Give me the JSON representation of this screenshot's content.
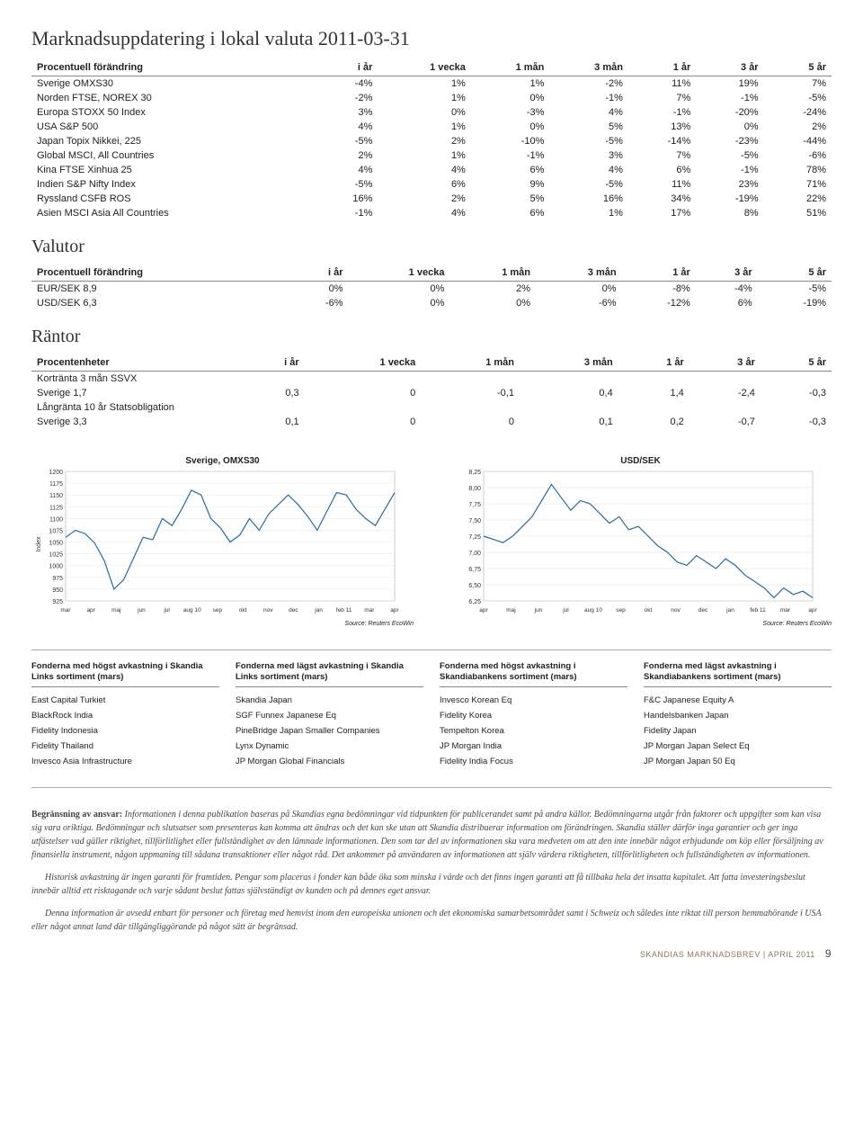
{
  "page_title": "Marknadsuppdatering i lokal valuta 2011-03-31",
  "table1": {
    "columns": [
      "Procentuell förändring",
      "i år",
      "1 vecka",
      "1 mån",
      "3 mån",
      "1 år",
      "3 år",
      "5 år"
    ],
    "rows": [
      [
        "Sverige OMXS30",
        "-4%",
        "1%",
        "1%",
        "-2%",
        "11%",
        "19%",
        "7%"
      ],
      [
        "Norden FTSE, NOREX 30",
        "-2%",
        "1%",
        "0%",
        "-1%",
        "7%",
        "-1%",
        "-5%"
      ],
      [
        "Europa STOXX 50 Index",
        "3%",
        "0%",
        "-3%",
        "4%",
        "-1%",
        "-20%",
        "-24%"
      ],
      [
        "USA S&P 500",
        "4%",
        "1%",
        "0%",
        "5%",
        "13%",
        "0%",
        "2%"
      ],
      [
        "Japan Topix Nikkei, 225",
        "-5%",
        "2%",
        "-10%",
        "-5%",
        "-14%",
        "-23%",
        "-44%"
      ],
      [
        "Global MSCI, All Countries",
        "2%",
        "1%",
        "-1%",
        "3%",
        "7%",
        "-5%",
        "-6%"
      ],
      [
        "Kina FTSE Xinhua 25",
        "4%",
        "4%",
        "6%",
        "4%",
        "6%",
        "-1%",
        "78%"
      ],
      [
        "Indien S&P Nifty Index",
        "-5%",
        "6%",
        "9%",
        "-5%",
        "11%",
        "23%",
        "71%"
      ],
      [
        "Ryssland CSFB ROS",
        "16%",
        "2%",
        "5%",
        "16%",
        "34%",
        "-19%",
        "22%"
      ],
      [
        "Asien MSCI Asia All Countries",
        "-1%",
        "4%",
        "6%",
        "1%",
        "17%",
        "8%",
        "51%"
      ]
    ]
  },
  "section_valutor": "Valutor",
  "table2": {
    "columns": [
      "Procentuell förändring",
      "i år",
      "1 vecka",
      "1 mån",
      "3 mån",
      "1 år",
      "3 år",
      "5 år"
    ],
    "rows": [
      [
        "EUR/SEK 8,9",
        "0%",
        "0%",
        "2%",
        "0%",
        "-8%",
        "-4%",
        "-5%"
      ],
      [
        "USD/SEK 6,3",
        "-6%",
        "0%",
        "0%",
        "-6%",
        "-12%",
        "6%",
        "-19%"
      ]
    ]
  },
  "section_rantor": "Räntor",
  "table3": {
    "columns": [
      "Procentenheter",
      "i år",
      "1 vecka",
      "1 mån",
      "3 mån",
      "1 år",
      "3 år",
      "5 år"
    ],
    "subhead1": "Kortränta 3 mån SSVX",
    "row1": [
      "Sverige 1,7",
      "0,3",
      "0",
      "-0,1",
      "0,4",
      "1,4",
      "-2,4",
      "-0,3"
    ],
    "subhead2": "Långränta 10 år Statsobligation",
    "row2": [
      "Sverige 3,3",
      "0,1",
      "0",
      "0",
      "0,1",
      "0,2",
      "-0,7",
      "-0,3"
    ]
  },
  "chart1": {
    "title": "Sverige, OMXS30",
    "ylabel": "Index",
    "yticks": [
      925,
      950,
      975,
      1000,
      1025,
      1050,
      1075,
      1100,
      1125,
      1150,
      1175,
      1200
    ],
    "xticks": [
      "mar",
      "apr",
      "maj",
      "jun",
      "jul",
      "aug 10",
      "sep",
      "okt",
      "nov",
      "dec",
      "jan",
      "feb 11",
      "mar",
      "apr"
    ],
    "source": "Source: Reuters EcoWin",
    "line_color": "#2a6aa0",
    "grid_color": "#e5e5e5",
    "bg": "#ffffff",
    "ylim": [
      925,
      1200
    ],
    "points": [
      1060,
      1075,
      1068,
      1048,
      1010,
      950,
      970,
      1015,
      1060,
      1055,
      1100,
      1085,
      1120,
      1160,
      1150,
      1100,
      1080,
      1050,
      1065,
      1100,
      1075,
      1110,
      1130,
      1150,
      1130,
      1105,
      1075,
      1115,
      1155,
      1150,
      1120,
      1100,
      1085,
      1120,
      1155
    ]
  },
  "chart2": {
    "title": "USD/SEK",
    "yticks": [
      "6,25",
      "6,50",
      "6,75",
      "7,00",
      "7,25",
      "7,50",
      "7,75",
      "8,00",
      "8,25"
    ],
    "xticks": [
      "apr",
      "maj",
      "jun",
      "jul",
      "aug 10",
      "sep",
      "okt",
      "nov",
      "dec",
      "jan",
      "feb 11",
      "mar",
      "apr"
    ],
    "source": "Source: Reuters EcoWin",
    "line_color": "#2a6aa0",
    "grid_color": "#e5e5e5",
    "bg": "#ffffff",
    "ylim": [
      6.25,
      8.25
    ],
    "points": [
      7.25,
      7.2,
      7.15,
      7.25,
      7.4,
      7.55,
      7.8,
      8.05,
      7.85,
      7.65,
      7.8,
      7.75,
      7.6,
      7.45,
      7.55,
      7.35,
      7.4,
      7.25,
      7.1,
      7.0,
      6.85,
      6.8,
      6.95,
      6.85,
      6.75,
      6.9,
      6.8,
      6.65,
      6.55,
      6.45,
      6.3,
      6.45,
      6.35,
      6.4,
      6.3
    ]
  },
  "bottom": {
    "cols": [
      {
        "hdr": "Fonderna med högst avkastning i Skandia Links sortiment (mars)",
        "items": [
          "East Capital Turkiet",
          "BlackRock India",
          "Fidelity Indonesia",
          "Fidelity Thailand",
          "Invesco Asia Infrastructure"
        ]
      },
      {
        "hdr": "Fonderna med lägst avkastning i Skandia Links sortiment (mars)",
        "items": [
          "Skandia Japan",
          "SGF Funnex Japanese Eq",
          "PineBridge Japan Smaller Companies",
          "Lynx Dynamic",
          "JP Morgan Global Financials"
        ]
      },
      {
        "hdr": "Fonderna med högst avkastning i Skandiabankens sortiment (mars)",
        "items": [
          "Invesco Korean Eq",
          "Fidelity Korea",
          "Tempelton Korea",
          "JP Morgan India",
          "Fidelity India Focus"
        ]
      },
      {
        "hdr": "Fonderna med lägst avkastning i Skandiabankens sortiment (mars)",
        "items": [
          "F&C Japanese Equity A",
          "Handelsbanken Japan",
          "Fidelity Japan",
          "JP Morgan Japan Select Eq",
          "JP Morgan Japan 50 Eq"
        ]
      }
    ]
  },
  "disclaimer_bold": "Begränsning av ansvar:",
  "disclaimer_p1": " Informationen i denna publikation baseras på Skandias egna bedömningar vid tidpunkten för publicerandet samt på andra källor. Bedömningarna utgår från faktorer och uppgifter som kan visa sig vara oriktiga. Bedömningar och slutsatser som presenteras kan komma att ändras och det kan ske utan att Skandia distribuerar information om förändringen. Skandia ställer därför inga garantier och ger inga utfästelser vad gäller riktighet, tillförlitlighet eller fullständighet av den lämnade informationen. Den som tar del av informationen ska vara medveten om att den inte innebär något erbjudande om köp eller försäljning av finansiella instrument, någon uppmaning till sådana transaktioner eller något råd. Det ankommer på användaren av informationen att själv värdera riktigheten, tillförlitligheten och fullständigheten av informationen.",
  "disclaimer_p2": "Historisk avkastning är ingen garanti för framtiden. Pengar som placeras i fonder kan både öka som minska i värde och det finns ingen garanti att få tillbaka hela det insatta kapitalet. Att fatta investeringsbeslut innebär alltid ett risktagande och varje sådant beslut fattas självständigt av kunden och på dennes eget ansvar.",
  "disclaimer_p3": "Denna information är avsedd enbart för personer och företag med hemvist inom den europeiska unionen och det ekonomiska samarbetsområdet samt i Schweiz och således inte riktat till person hemmahörande i USA eller något annat land där tillgängliggörande på något sätt är begränsad.",
  "footer_text": "SKANDIAS MARKNADSBREV",
  "footer_sep": "|",
  "footer_issue": "APRIL 2011",
  "footer_page": "9"
}
